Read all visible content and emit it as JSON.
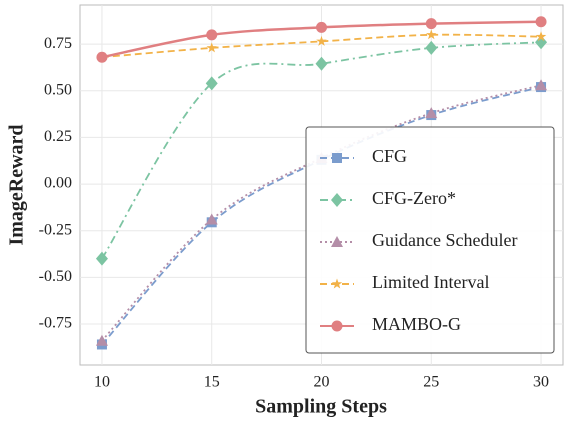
{
  "chart_data": {
    "type": "line",
    "xlabel": "Sampling Steps",
    "ylabel": "ImageReward",
    "x": [
      10,
      15,
      20,
      25,
      30
    ],
    "series": [
      {
        "name": "CFG",
        "color": "#7b9ccd",
        "marker": "square",
        "dash": "dashed",
        "values": [
          -0.86,
          -0.205,
          0.13,
          0.37,
          0.52
        ]
      },
      {
        "name": "CFG-Zero*",
        "color": "#7cc4a2",
        "marker": "diamond",
        "dash": "dashdot",
        "values": [
          -0.4,
          0.54,
          0.645,
          0.73,
          0.76
        ]
      },
      {
        "name": "Guidance Scheduler",
        "color": "#b48ea8",
        "marker": "triangle",
        "dash": "dotted",
        "values": [
          -0.84,
          -0.19,
          0.14,
          0.38,
          0.53
        ]
      },
      {
        "name": "Limited Interval",
        "color": "#f2b248",
        "marker": "star",
        "dash": "dashed",
        "values": [
          0.68,
          0.73,
          0.765,
          0.8,
          0.79
        ]
      },
      {
        "name": "MAMBO-G",
        "color": "#e07f81",
        "marker": "circle",
        "dash": "solid",
        "values": [
          0.68,
          0.8,
          0.84,
          0.86,
          0.87
        ]
      }
    ],
    "xlim": [
      9,
      31
    ],
    "ylim": [
      -0.97,
      0.96
    ],
    "xticks": [
      10,
      15,
      20,
      25,
      30
    ],
    "yticks": [
      -0.75,
      {
        "value": -0.5,
        "label": "-0.50"
      },
      -0.25,
      {
        "value": 0,
        "label": "0.00"
      },
      0.25,
      {
        "value": 0.5,
        "label": "0.50"
      },
      0.75
    ],
    "grid": true,
    "legend": "lower right"
  }
}
